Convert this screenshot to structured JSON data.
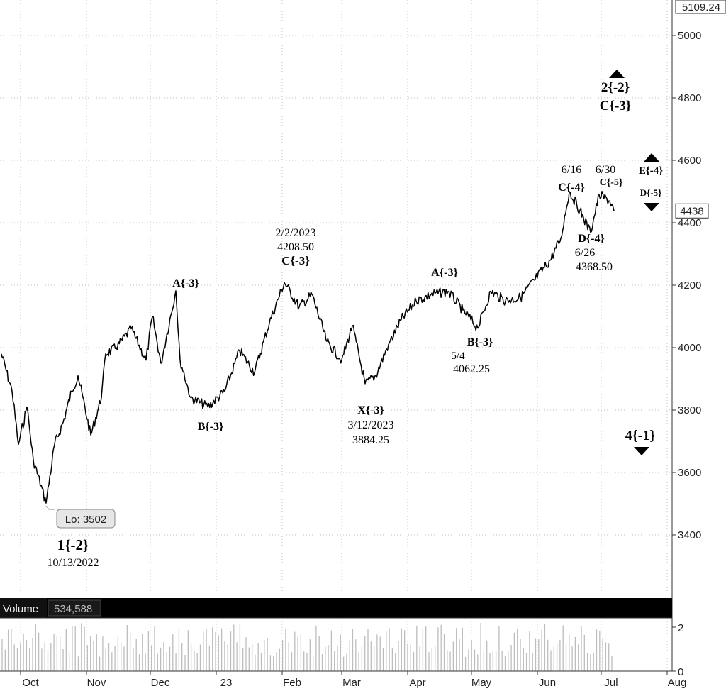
{
  "chart_data": {
    "type": "line",
    "title": "",
    "xlabel": "",
    "ylabel": "",
    "ylim": [
      3200,
      5109.24
    ],
    "y_ticks": [
      "5000",
      "4800",
      "4600",
      "4400",
      "4200",
      "4000",
      "3800",
      "3600",
      "3400"
    ],
    "y_tick_values": [
      5000,
      4800,
      4600,
      4400,
      4200,
      4000,
      3800,
      3600,
      3400
    ],
    "top_price_label": "5109.24",
    "last_price_label": "4438",
    "last_price": 4438,
    "x_ticks": [
      "Oct",
      "Nov",
      "Dec",
      "23",
      "Feb",
      "Mar",
      "Apr",
      "May",
      "Jun",
      "Jul",
      "Aug"
    ],
    "grid": true,
    "series": [
      {
        "values_key": "price",
        "anchors": [
          [
            "2022-09-22",
            3980
          ],
          [
            "2022-09-27",
            3860
          ],
          [
            "2022-09-30",
            3690
          ],
          [
            "2022-10-04",
            3810
          ],
          [
            "2022-10-07",
            3640
          ],
          [
            "2022-10-13",
            3502
          ],
          [
            "2022-10-17",
            3690
          ],
          [
            "2022-10-21",
            3760
          ],
          [
            "2022-10-25",
            3860
          ],
          [
            "2022-10-28",
            3910
          ],
          [
            "2022-11-03",
            3720
          ],
          [
            "2022-11-08",
            3840
          ],
          [
            "2022-11-10",
            3980
          ],
          [
            "2022-11-15",
            4000
          ],
          [
            "2022-11-22",
            4060
          ],
          [
            "2022-11-29",
            3960
          ],
          [
            "2022-12-02",
            4100
          ],
          [
            "2022-12-06",
            3950
          ],
          [
            "2022-12-13",
            4182
          ],
          [
            "2022-12-15",
            3960
          ],
          [
            "2022-12-20",
            3840
          ],
          [
            "2022-12-28",
            3810
          ],
          [
            "2023-01-05",
            3860
          ],
          [
            "2023-01-12",
            3990
          ],
          [
            "2023-01-19",
            3920
          ],
          [
            "2023-01-26",
            4080
          ],
          [
            "2023-02-02",
            4208.5
          ],
          [
            "2023-02-09",
            4130
          ],
          [
            "2023-02-15",
            4170
          ],
          [
            "2023-02-22",
            4020
          ],
          [
            "2023-03-01",
            3960
          ],
          [
            "2023-03-06",
            4070
          ],
          [
            "2023-03-12",
            3884.25
          ],
          [
            "2023-03-17",
            3910
          ],
          [
            "2023-03-23",
            4010
          ],
          [
            "2023-03-29",
            4090
          ],
          [
            "2023-04-05",
            4150
          ],
          [
            "2023-04-12",
            4170
          ],
          [
            "2023-04-20",
            4180
          ],
          [
            "2023-04-27",
            4120
          ],
          [
            "2023-05-04",
            4062.25
          ],
          [
            "2023-05-10",
            4180
          ],
          [
            "2023-05-17",
            4150
          ],
          [
            "2023-05-24",
            4160
          ],
          [
            "2023-05-31",
            4220
          ],
          [
            "2023-06-07",
            4280
          ],
          [
            "2023-06-12",
            4350
          ],
          [
            "2023-06-16",
            4500
          ],
          [
            "2023-06-21",
            4440
          ],
          [
            "2023-06-26",
            4368.5
          ],
          [
            "2023-06-30",
            4490
          ],
          [
            "2023-07-05",
            4470
          ],
          [
            "2023-07-07",
            4438
          ]
        ]
      }
    ],
    "volume": {
      "label": "Volume",
      "value": "534,588",
      "y_ticks": [
        "2",
        "0"
      ],
      "y_tick_values": [
        2,
        0
      ]
    },
    "annotations": [
      {
        "date": "2022-10-13",
        "price": 3502,
        "callout": "Lo: 3502"
      },
      {
        "date": "2022-10-13",
        "price": 3400,
        "lines": [
          "1{-2}",
          "10/13/2022"
        ]
      },
      {
        "date": "2022-12-13",
        "price": 4182,
        "lines": [
          "A{-3}"
        ]
      },
      {
        "date": "2022-12-28",
        "price": 3810,
        "lines": [
          "B{-3}"
        ]
      },
      {
        "date": "2023-02-02",
        "price": 4208.5,
        "lines": [
          "2/2/2023",
          "4208.50",
          "C{-3}"
        ]
      },
      {
        "date": "2023-03-12",
        "price": 3884.25,
        "lines": [
          "X{-3}",
          "3/12/2023",
          "3884.25"
        ]
      },
      {
        "date": "2023-04-12",
        "price": 4170,
        "lines": [
          "A{-3}"
        ]
      },
      {
        "date": "2023-05-04",
        "price": 4062.25,
        "lines": [
          "B{-3}",
          "5/4",
          "4062.25"
        ]
      },
      {
        "date": "2023-06-16",
        "price": 4500,
        "lines": [
          "6/16",
          "C{-4}"
        ]
      },
      {
        "date": "2023-06-26",
        "price": 4368.5,
        "lines": [
          "D{-4}",
          "6/26",
          "4368.50"
        ]
      },
      {
        "date": "2023-06-30",
        "price": 4490,
        "lines": [
          "6/30",
          "C{-5}"
        ]
      },
      {
        "lines": [
          "2{-2}",
          "C{-3}"
        ],
        "arrow": "up"
      },
      {
        "lines": [
          "E{-4}"
        ],
        "arrow": "up"
      },
      {
        "lines": [
          "D{-5}"
        ],
        "arrow": "down"
      },
      {
        "lines": [
          "4{-1}"
        ],
        "arrow": "down"
      }
    ]
  }
}
